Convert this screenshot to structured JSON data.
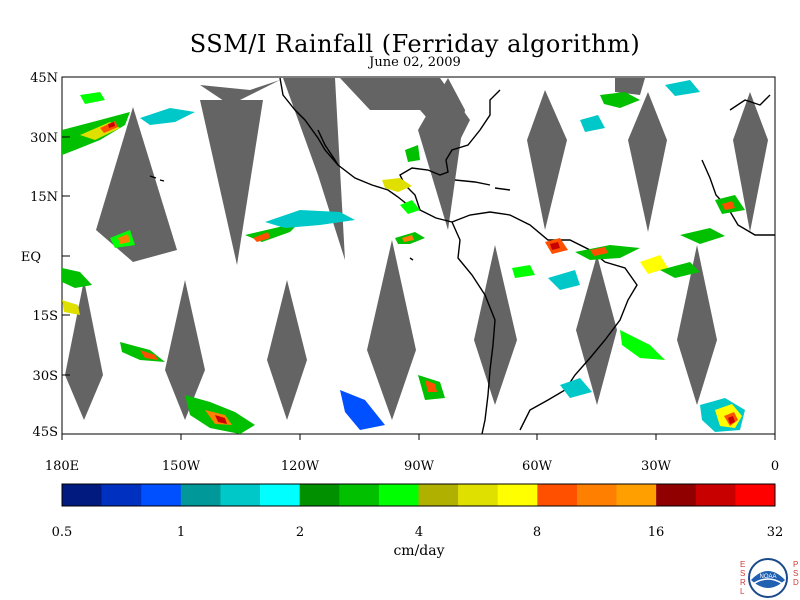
{
  "title": "SSM/I Rainfall (Ferriday algorithm)",
  "date": "June 02, 2009",
  "lat_labels": [
    "45N",
    "30N",
    "15N",
    "EQ",
    "15S",
    "30S",
    "45S"
  ],
  "lon_labels": [
    "180E",
    "150W",
    "120W",
    "90W",
    "60W",
    "30W",
    "0"
  ],
  "colorbar": {
    "colors": [
      "#001a80",
      "#0030c0",
      "#0050ff",
      "#009898",
      "#00c8c8",
      "#00ffff",
      "#009000",
      "#00c000",
      "#00ff00",
      "#b0b000",
      "#e0e000",
      "#ffff00",
      "#ff5000",
      "#ff8000",
      "#ffa000",
      "#900000",
      "#c80000",
      "#ff0000"
    ],
    "tick_labels": [
      "0.5",
      "1",
      "2",
      "4",
      "8",
      "16",
      "32"
    ],
    "unit": "cm/day"
  },
  "logo": {
    "left_letters": [
      "E",
      "S",
      "R",
      "L"
    ],
    "right_letters": [
      "P",
      "S",
      "D"
    ],
    "text": "NOAA"
  },
  "colors": {
    "swath_gap": "#646464",
    "coast": "#000000"
  }
}
